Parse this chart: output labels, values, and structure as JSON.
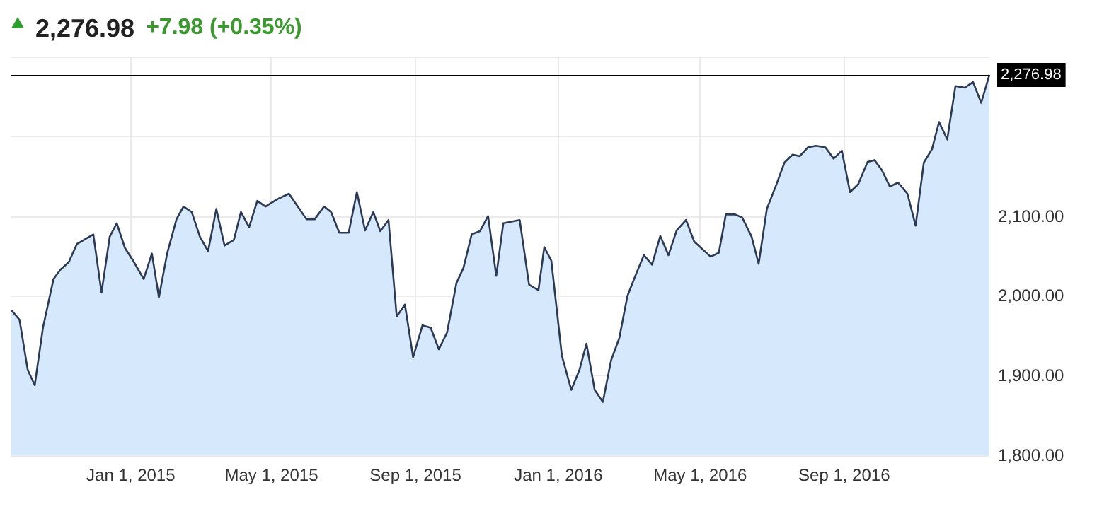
{
  "chart_data": {
    "type": "area",
    "title": "2,276.98",
    "subtitle": "+7.98 (+0.35%)",
    "x": [
      "2014-09-21",
      "2014-09-28",
      "2014-10-05",
      "2014-10-11",
      "2014-10-18",
      "2014-10-27",
      "2014-11-02",
      "2014-11-09",
      "2014-11-16",
      "2014-11-30",
      "2014-12-07",
      "2014-12-14",
      "2014-12-20",
      "2014-12-27",
      "2015-01-03",
      "2015-01-12",
      "2015-01-19",
      "2015-01-25",
      "2015-02-01",
      "2015-02-09",
      "2015-02-15",
      "2015-02-22",
      "2015-03-01",
      "2015-03-08",
      "2015-03-15",
      "2015-03-22",
      "2015-03-30",
      "2015-04-05",
      "2015-04-12",
      "2015-04-19",
      "2015-04-26",
      "2015-05-06",
      "2015-05-16",
      "2015-05-24",
      "2015-05-31",
      "2015-06-07",
      "2015-06-15",
      "2015-06-21",
      "2015-06-28",
      "2015-07-06",
      "2015-07-13",
      "2015-07-20",
      "2015-07-27",
      "2015-08-02",
      "2015-08-09",
      "2015-08-16",
      "2015-08-23",
      "2015-08-30",
      "2015-09-07",
      "2015-09-14",
      "2015-09-21",
      "2015-09-28",
      "2015-10-06",
      "2015-10-12",
      "2015-10-19",
      "2015-10-26",
      "2015-11-02",
      "2015-11-09",
      "2015-11-15",
      "2015-11-29",
      "2015-12-07",
      "2015-12-15",
      "2015-12-20",
      "2015-12-26",
      "2016-01-04",
      "2016-01-12",
      "2016-01-19",
      "2016-01-25",
      "2016-02-01",
      "2016-02-08",
      "2016-02-15",
      "2016-02-22",
      "2016-02-29",
      "2016-03-07",
      "2016-03-14",
      "2016-03-21",
      "2016-03-28",
      "2016-04-04",
      "2016-04-11",
      "2016-04-19",
      "2016-04-26",
      "2016-05-10",
      "2016-05-17",
      "2016-05-23",
      "2016-05-31",
      "2016-06-06",
      "2016-06-14",
      "2016-06-20",
      "2016-06-27",
      "2016-07-05",
      "2016-07-12",
      "2016-07-19",
      "2016-07-25",
      "2016-08-01",
      "2016-08-08",
      "2016-08-16",
      "2016-08-23",
      "2016-08-30",
      "2016-09-06",
      "2016-09-13",
      "2016-09-21",
      "2016-09-27",
      "2016-10-03",
      "2016-10-10",
      "2016-10-17",
      "2016-10-25",
      "2016-11-01",
      "2016-11-08",
      "2016-11-15",
      "2016-11-21",
      "2016-11-28",
      "2016-12-05",
      "2016-12-13",
      "2016-12-20",
      "2016-12-27",
      "2017-01-03"
    ],
    "series": [
      {
        "color": "#2c3a55",
        "values": [
          1982,
          1970,
          1907,
          1888,
          1960,
          2021,
          2033,
          2042,
          2065,
          2077,
          2004,
          2074,
          2091,
          2060,
          2044,
          2021,
          2053,
          1998,
          2053,
          2096,
          2112,
          2105,
          2074,
          2056,
          2109,
          2063,
          2070,
          2105,
          2086,
          2119,
          2112,
          2121,
          2128,
          2111,
          2096,
          2096,
          2112,
          2105,
          2079,
          2079,
          2130,
          2082,
          2105,
          2081,
          2095,
          1974,
          1989,
          1923,
          1963,
          1960,
          1933,
          1954,
          2016,
          2035,
          2077,
          2081,
          2100,
          2025,
          2091,
          2095,
          2014,
          2007,
          2061,
          2044,
          1925,
          1882,
          1907,
          1940,
          1882,
          1867,
          1919,
          1947,
          2000,
          2026,
          2051,
          2039,
          2075,
          2051,
          2082,
          2095,
          2068,
          2049,
          2054,
          2102,
          2102,
          2098,
          2074,
          2040,
          2109,
          2139,
          2167,
          2177,
          2175,
          2186,
          2188,
          2186,
          2172,
          2182,
          2130,
          2140,
          2168,
          2170,
          2158,
          2137,
          2142,
          2128,
          2088,
          2167,
          2184,
          2218,
          2196,
          2263,
          2261,
          2268,
          2242,
          2276.98
        ]
      }
    ],
    "xlim": [
      "2014-09-21",
      "2017-01-03"
    ],
    "xticks": [
      {
        "value": "2015-01-01",
        "label": "Jan 1, 2015"
      },
      {
        "value": "2015-05-01",
        "label": "May 1, 2015"
      },
      {
        "value": "2015-09-01",
        "label": "Sep 1, 2015"
      },
      {
        "value": "2016-01-01",
        "label": "Jan 1, 2016"
      },
      {
        "value": "2016-05-01",
        "label": "May 1, 2016"
      },
      {
        "value": "2016-09-01",
        "label": "Sep 1, 2016"
      }
    ],
    "ylim": [
      1800,
      2300
    ],
    "yticks": [
      {
        "value": 1800,
        "label": "1,800.00"
      },
      {
        "value": 1900,
        "label": "1,900.00"
      },
      {
        "value": 2000,
        "label": "2,000.00"
      },
      {
        "value": 2100,
        "label": "2,100.00"
      },
      {
        "value": 2200,
        "label": null
      },
      {
        "value": 2300,
        "label": null
      }
    ],
    "ref_lines": [
      {
        "axis": "y",
        "value": 2276.98,
        "label": "2,276.98",
        "color": "#000000"
      }
    ],
    "grid": true
  }
}
